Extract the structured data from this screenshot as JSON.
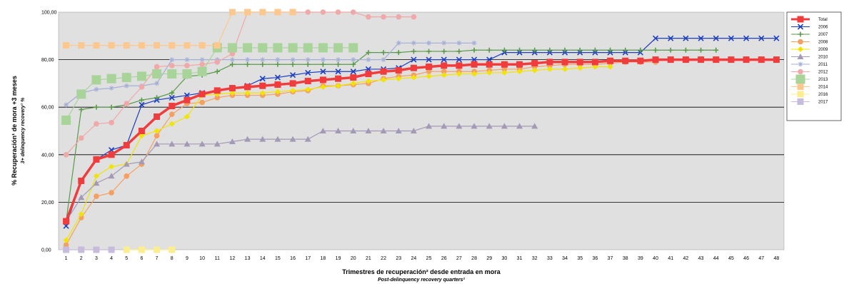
{
  "chart_data": {
    "type": "line",
    "title": "",
    "ylabel": "% Recuperación¹ de mora +3 meses",
    "ylabel_sub": "3+ delinquency recovery¹ %",
    "xlabel": "Trimestres de recuperación² desde entrada en mora",
    "xlabel_sub": "Post-delinquency recovery quarters²",
    "ylim": [
      0,
      100
    ],
    "yticks": [
      "0,00",
      "20,00",
      "40,00",
      "60,00",
      "80,00",
      "100,00"
    ],
    "xticks": [
      "1",
      "2",
      "3",
      "4",
      "5",
      "6",
      "7",
      "8",
      "9",
      "10",
      "11",
      "12",
      "13",
      "14",
      "15",
      "16",
      "17",
      "18",
      "19",
      "20",
      "21",
      "22",
      "23",
      "24",
      "25",
      "26",
      "27",
      "28",
      "29",
      "30",
      "31",
      "32",
      "33",
      "34",
      "35",
      "36",
      "37",
      "38",
      "39",
      "40",
      "41",
      "42",
      "43",
      "44",
      "45",
      "46",
      "47",
      "48"
    ],
    "grid": true,
    "legend_position": "right",
    "series": [
      {
        "name": "Total",
        "color": "#f03c3c",
        "marker": "square",
        "values": [
          12,
          29,
          38,
          40,
          44,
          50,
          56,
          60.5,
          63,
          65.5,
          67,
          68,
          68.5,
          69,
          69.5,
          70,
          71,
          71.5,
          72,
          72.5,
          74,
          75,
          75.5,
          76.5,
          77,
          77.5,
          77.5,
          78,
          78,
          78,
          78,
          78.5,
          79,
          79,
          79,
          79,
          79.5,
          79.5,
          79.5,
          80,
          80,
          80,
          80,
          80,
          80,
          80,
          80,
          80
        ]
      },
      {
        "name": "2006",
        "color": "#1f3fbf",
        "marker": "x",
        "values": [
          10,
          29,
          38,
          42,
          44,
          61,
          63,
          64,
          65,
          66,
          67,
          68,
          69,
          72,
          72.5,
          73.5,
          74.5,
          75,
          75,
          75,
          76,
          76,
          76.5,
          80,
          80,
          80,
          80,
          80,
          80,
          83,
          83,
          83,
          83,
          83,
          83,
          83,
          83,
          83,
          83,
          89,
          89,
          89,
          89,
          89,
          89,
          89,
          89,
          89
        ]
      },
      {
        "name": "2007",
        "color": "#5a9a4a",
        "marker": "plus",
        "values": [
          12,
          59,
          60,
          60,
          61,
          63,
          64,
          66,
          73,
          73.5,
          75,
          78,
          78,
          78,
          78,
          78,
          78,
          78,
          78,
          78,
          83,
          83,
          83,
          83.5,
          83.5,
          83.5,
          83.5,
          84,
          84,
          84,
          84,
          84,
          84,
          84,
          84,
          84,
          84,
          84,
          84,
          84,
          84,
          84,
          84,
          84
        ]
      },
      {
        "name": "2008",
        "color": "#f5a060",
        "marker": "circle",
        "values": [
          2,
          13.5,
          22.5,
          24,
          31,
          36,
          48,
          57,
          61.5,
          62,
          64,
          65,
          65,
          65,
          65.5,
          66.5,
          67,
          69,
          69,
          69.5,
          70,
          72,
          73,
          73.5,
          75,
          75,
          75,
          75,
          75.5,
          76,
          76,
          77,
          77.5,
          78,
          78,
          78,
          78.5,
          79,
          79,
          79
        ]
      },
      {
        "name": "2009",
        "color": "#f2e400",
        "marker": "diamond",
        "values": [
          4,
          15,
          31,
          35,
          36,
          48,
          50,
          53,
          56,
          65,
          65.5,
          66,
          66,
          66,
          66.5,
          67,
          67.5,
          68.5,
          69,
          70,
          71,
          71.5,
          72,
          72.5,
          73,
          73.5,
          74,
          74,
          74.5,
          74.5,
          75,
          75.5,
          76,
          76,
          76.5,
          77,
          77
        ]
      },
      {
        "name": "2010",
        "color": "#a49ab6",
        "marker": "triangle",
        "values": [
          12,
          22,
          28,
          31,
          36,
          37,
          44.5,
          44.5,
          44.5,
          44.5,
          44.5,
          45.5,
          46.5,
          46.5,
          46.5,
          46.5,
          46.5,
          50,
          50,
          50,
          50,
          50,
          50,
          50,
          52,
          52,
          52,
          52,
          52,
          52,
          52,
          52
        ]
      },
      {
        "name": "2011",
        "color": "#a4aed6",
        "marker": "star",
        "values": [
          61,
          66,
          67.5,
          68,
          69,
          69,
          70,
          80,
          80,
          80,
          80,
          80,
          80,
          80,
          80,
          80,
          80,
          80,
          80,
          80,
          80,
          80,
          87,
          87,
          87,
          87,
          87,
          87
        ]
      },
      {
        "name": "2012",
        "color": "#f0a8a8",
        "marker": "circle",
        "values": [
          40,
          47,
          53,
          53.5,
          61.5,
          68.5,
          77,
          77.5,
          77.5,
          78,
          79,
          82.5,
          100,
          100,
          100,
          100,
          100,
          100,
          100,
          100,
          98,
          98,
          98,
          98
        ]
      },
      {
        "name": "2013",
        "color": "#a8d49a",
        "marker": "bigsquare",
        "values": [
          54.5,
          65.5,
          71.5,
          72,
          72.5,
          73,
          74,
          74,
          74,
          75,
          85,
          85,
          85,
          85,
          85,
          85,
          85,
          85,
          85,
          85
        ]
      },
      {
        "name": "2014",
        "color": "#fcc890",
        "marker": "square",
        "values": [
          86,
          86,
          86,
          86,
          86,
          86,
          86,
          86,
          86,
          86,
          86,
          100,
          100,
          100,
          100,
          100
        ]
      },
      {
        "name": "2016",
        "color": "#fcee90",
        "marker": "square",
        "values": [
          null,
          null,
          null,
          null,
          0,
          0,
          0,
          0
        ]
      },
      {
        "name": "2017",
        "color": "#c8bcdc",
        "marker": "square",
        "values": [
          0,
          0,
          0,
          0
        ]
      }
    ]
  }
}
